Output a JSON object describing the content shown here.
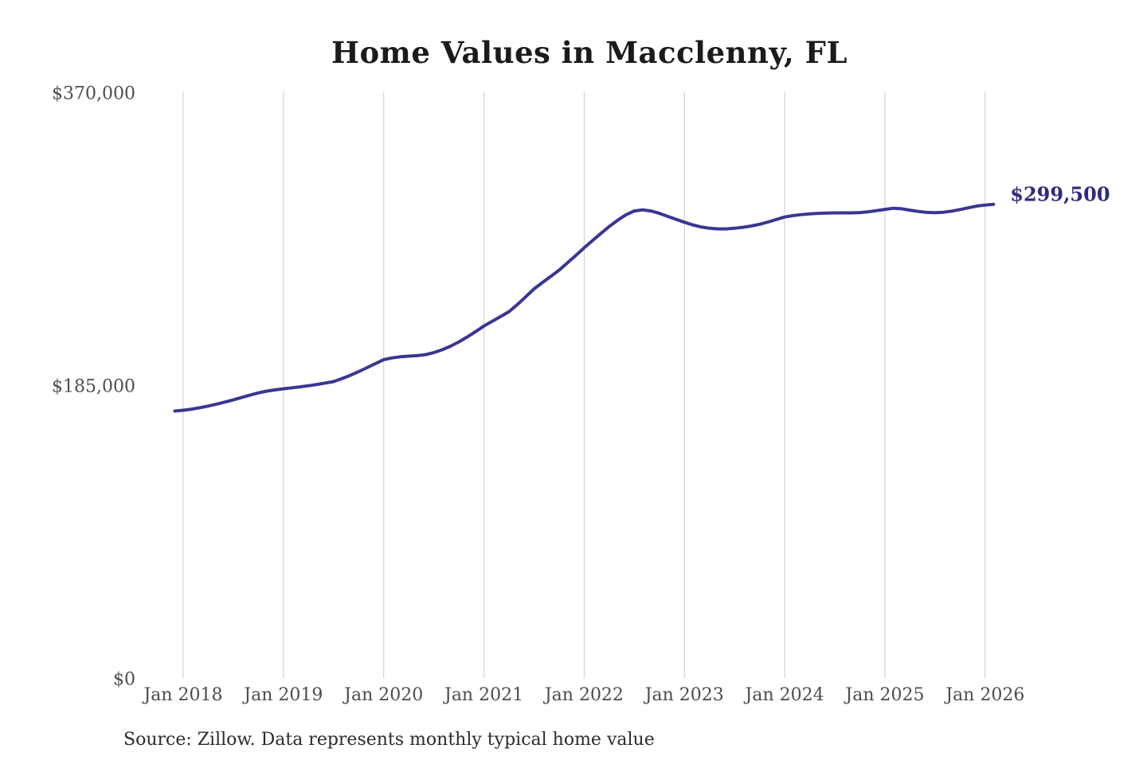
{
  "chart_data": {
    "type": "line",
    "title": "Home Values in Macclenny, FL",
    "source": "Source: Zillow. Data represents monthly typical home value",
    "end_label": "$299,500",
    "grid": "vertical-only",
    "legend": "none",
    "ylim": [
      0,
      370000
    ],
    "colors": {
      "line": "#3a3692",
      "end_label": "#2e2b7e",
      "grid": "#cccccc",
      "axis_text": "#4d4d4d",
      "title_text": "#1b1b1b",
      "source_text": "#2b2b2b"
    },
    "y_ticks": [
      {
        "label": "$0",
        "value": 0
      },
      {
        "label": "$185,000",
        "value": 185000
      },
      {
        "label": "$370,000",
        "value": 370000
      }
    ],
    "x_ticks": [
      {
        "label": "Jan 2018",
        "date": "2018-01"
      },
      {
        "label": "Jan 2019",
        "date": "2019-01"
      },
      {
        "label": "Jan 2020",
        "date": "2020-01"
      },
      {
        "label": "Jan 2021",
        "date": "2021-01"
      },
      {
        "label": "Jan 2022",
        "date": "2022-01"
      },
      {
        "label": "Jan 2023",
        "date": "2023-01"
      },
      {
        "label": "Jan 2024",
        "date": "2024-01"
      },
      {
        "label": "Jan 2025",
        "date": "2025-01"
      },
      {
        "label": "Jan 2026",
        "date": "2026-01"
      }
    ],
    "series": [
      {
        "name": "Monthly typical home value",
        "points": [
          [
            "2017-12",
            168900
          ],
          [
            "2018-01",
            169400
          ],
          [
            "2018-02",
            170100
          ],
          [
            "2018-03",
            171000
          ],
          [
            "2018-04",
            172100
          ],
          [
            "2018-05",
            173300
          ],
          [
            "2018-06",
            174600
          ],
          [
            "2018-07",
            176000
          ],
          [
            "2018-08",
            177500
          ],
          [
            "2018-09",
            179000
          ],
          [
            "2018-10",
            180400
          ],
          [
            "2018-11",
            181500
          ],
          [
            "2018-12",
            182300
          ],
          [
            "2019-01",
            183000
          ],
          [
            "2019-02",
            183600
          ],
          [
            "2019-03",
            184200
          ],
          [
            "2019-04",
            184900
          ],
          [
            "2019-05",
            185700
          ],
          [
            "2019-06",
            186600
          ],
          [
            "2019-07",
            187500
          ],
          [
            "2019-08",
            189400
          ],
          [
            "2019-09",
            191500
          ],
          [
            "2019-10",
            193800
          ],
          [
            "2019-11",
            196300
          ],
          [
            "2019-12",
            198900
          ],
          [
            "2020-01",
            201400
          ],
          [
            "2020-02",
            202500
          ],
          [
            "2020-03",
            203200
          ],
          [
            "2020-04",
            203600
          ],
          [
            "2020-05",
            203900
          ],
          [
            "2020-06",
            204500
          ],
          [
            "2020-07",
            205800
          ],
          [
            "2020-08",
            207600
          ],
          [
            "2020-09",
            209900
          ],
          [
            "2020-10",
            212600
          ],
          [
            "2020-11",
            215700
          ],
          [
            "2020-12",
            219100
          ],
          [
            "2021-01",
            222600
          ],
          [
            "2021-02",
            225600
          ],
          [
            "2021-03",
            228600
          ],
          [
            "2021-04",
            231700
          ],
          [
            "2021-05",
            236200
          ],
          [
            "2021-06",
            241100
          ],
          [
            "2021-07",
            246100
          ],
          [
            "2021-08",
            250100
          ],
          [
            "2021-09",
            253900
          ],
          [
            "2021-10",
            257900
          ],
          [
            "2021-11",
            262500
          ],
          [
            "2021-12",
            267200
          ],
          [
            "2022-01",
            272000
          ],
          [
            "2022-02",
            276600
          ],
          [
            "2022-03",
            281100
          ],
          [
            "2022-04",
            285500
          ],
          [
            "2022-05",
            289400
          ],
          [
            "2022-06",
            292900
          ],
          [
            "2022-07",
            295300
          ],
          [
            "2022-08",
            296000
          ],
          [
            "2022-09",
            295300
          ],
          [
            "2022-10",
            293800
          ],
          [
            "2022-11",
            291900
          ],
          [
            "2022-12",
            290000
          ],
          [
            "2023-01",
            288200
          ],
          [
            "2023-02",
            286500
          ],
          [
            "2023-03",
            285200
          ],
          [
            "2023-04",
            284400
          ],
          [
            "2023-05",
            284000
          ],
          [
            "2023-06",
            284000
          ],
          [
            "2023-07",
            284400
          ],
          [
            "2023-08",
            285000
          ],
          [
            "2023-09",
            285800
          ],
          [
            "2023-10",
            286900
          ],
          [
            "2023-11",
            288300
          ],
          [
            "2023-12",
            289900
          ],
          [
            "2024-01",
            291500
          ],
          [
            "2024-02",
            292400
          ],
          [
            "2024-03",
            293000
          ],
          [
            "2024-04",
            293500
          ],
          [
            "2024-05",
            293800
          ],
          [
            "2024-06",
            294000
          ],
          [
            "2024-07",
            294100
          ],
          [
            "2024-08",
            294100
          ],
          [
            "2024-09",
            294100
          ],
          [
            "2024-10",
            294300
          ],
          [
            "2024-11",
            294800
          ],
          [
            "2024-12",
            295500
          ],
          [
            "2025-01",
            296300
          ],
          [
            "2025-02",
            297000
          ],
          [
            "2025-03",
            296700
          ],
          [
            "2025-04",
            295800
          ],
          [
            "2025-05",
            295000
          ],
          [
            "2025-06",
            294400
          ],
          [
            "2025-07",
            294200
          ],
          [
            "2025-08",
            294500
          ],
          [
            "2025-09",
            295200
          ],
          [
            "2025-10",
            296200
          ],
          [
            "2025-11",
            297300
          ],
          [
            "2025-12",
            298400
          ],
          [
            "2026-01",
            299000
          ],
          [
            "2026-02",
            299500
          ]
        ]
      }
    ]
  }
}
